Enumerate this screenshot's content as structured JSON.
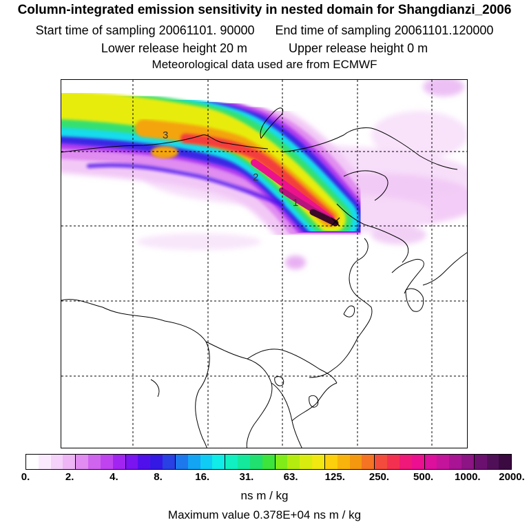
{
  "header": {
    "title": "Column-integrated emission sensitivity in nested domain for Shangdianzi_2006",
    "start_label": "Start time of sampling 20061101. 90000",
    "end_label": "End time of sampling 20061101.120000",
    "lower_label": "Lower release height   20 m",
    "upper_label": "Upper release height    0 m",
    "met_label": "Meteorological data used are from ECMWF"
  },
  "map": {
    "contour_labels": [
      "1",
      "2",
      "3"
    ],
    "plume_colors": {
      "outer": "#f2c8f6",
      "light": "#e08cf0",
      "violet": "#b13cf0",
      "blue": "#3a28e6",
      "cyan": "#18dcec",
      "green": "#34e070",
      "yellow": "#e8ec10",
      "orange": "#f4a40c",
      "red": "#f43c3c",
      "pink": "#ec128c",
      "magenta": "#b4147c",
      "dark": "#3a0a28"
    }
  },
  "colorbar": {
    "tick_labels": [
      "0.",
      "2.",
      "4.",
      "8.",
      "16.",
      "31.",
      "63.",
      "125.",
      "250.",
      "500.",
      "1000.",
      "2000."
    ],
    "colors": [
      "#ffffff",
      "#fbeafd",
      "#f5d2f9",
      "#eeb6f5",
      "#e08cf0",
      "#cf64ee",
      "#bf44f0",
      "#a224f0",
      "#7a14f0",
      "#5010ec",
      "#3418e4",
      "#2840e4",
      "#1c78ec",
      "#14a4f4",
      "#10ccf4",
      "#10ece8",
      "#10f0c0",
      "#14e89c",
      "#20e070",
      "#3ce43c",
      "#80ec18",
      "#b4ec10",
      "#d8ec10",
      "#f0e810",
      "#fcd00c",
      "#f8b40c",
      "#f49810",
      "#f47424",
      "#f44c3c",
      "#f43050",
      "#f01878",
      "#ec1090",
      "#dc109c",
      "#c4149c",
      "#a81494",
      "#8c1484",
      "#6c1070",
      "#501058",
      "#3a0a40"
    ],
    "unit": "ns m / kg",
    "max_value_label": "Maximum value  0.378E+04 ns m / kg"
  }
}
